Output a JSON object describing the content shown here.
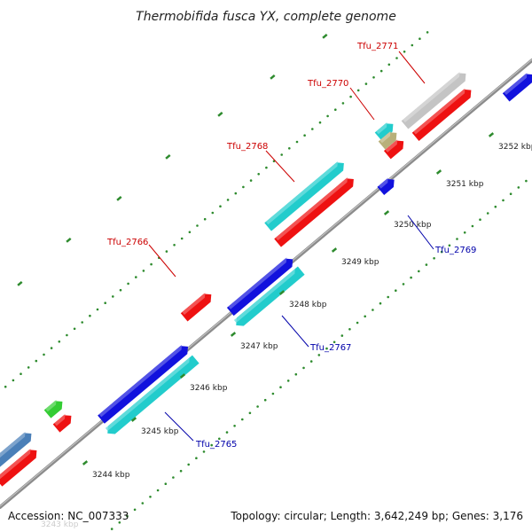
{
  "title": "Thermobifida fusca YX, complete genome",
  "footer": {
    "accession": "Accession: NC_007333",
    "topology": "Topology: circular; Length: 3,642,249 bp; Genes: 3,176"
  },
  "faint_label": "3243 kbp",
  "colors": {
    "backbone": "#8c8c8c",
    "tick_dots": "#2e8b2e",
    "red": "#ee1111",
    "blue": "#1111dd",
    "cyan": "#22cccc",
    "gray": "#c4c4c4",
    "green": "#33cc33",
    "steel": "#4a7fb8",
    "khaki": "#b8b07a",
    "label_red": "#cc0000",
    "label_blue": "#0000aa"
  },
  "kbp_ticks": [
    {
      "label": "3244 kbp"
    },
    {
      "label": "3245 kbp"
    },
    {
      "label": "3246 kbp"
    },
    {
      "label": "3247 kbp"
    },
    {
      "label": "3248 kbp"
    },
    {
      "label": "3249 kbp"
    },
    {
      "label": "3250 kbp"
    },
    {
      "label": "3251 kbp"
    },
    {
      "label": "3252 kbp"
    }
  ],
  "gene_labels": [
    {
      "id": "Tfu_2765",
      "label": "Tfu_2765",
      "color": "label_blue"
    },
    {
      "id": "Tfu_2766",
      "label": "Tfu_2766",
      "color": "label_red"
    },
    {
      "id": "Tfu_2767",
      "label": "Tfu_2767",
      "color": "label_blue"
    },
    {
      "id": "Tfu_2768",
      "label": "Tfu_2768",
      "color": "label_red"
    },
    {
      "id": "Tfu_2769",
      "label": "Tfu_2769",
      "color": "label_blue"
    },
    {
      "id": "Tfu_2770",
      "label": "Tfu_2770",
      "color": "label_red"
    },
    {
      "id": "Tfu_2771",
      "label": "Tfu_2771",
      "color": "label_red"
    }
  ],
  "features": [
    {
      "color": "steel"
    },
    {
      "color": "red"
    },
    {
      "color": "green"
    },
    {
      "color": "red"
    },
    {
      "color": "blue"
    },
    {
      "color": "cyan"
    },
    {
      "color": "red"
    },
    {
      "color": "blue"
    },
    {
      "color": "cyan"
    },
    {
      "color": "cyan"
    },
    {
      "color": "red"
    },
    {
      "color": "blue"
    },
    {
      "color": "red"
    },
    {
      "color": "cyan"
    },
    {
      "color": "khaki"
    },
    {
      "color": "gray"
    },
    {
      "color": "red"
    },
    {
      "color": "blue"
    }
  ]
}
